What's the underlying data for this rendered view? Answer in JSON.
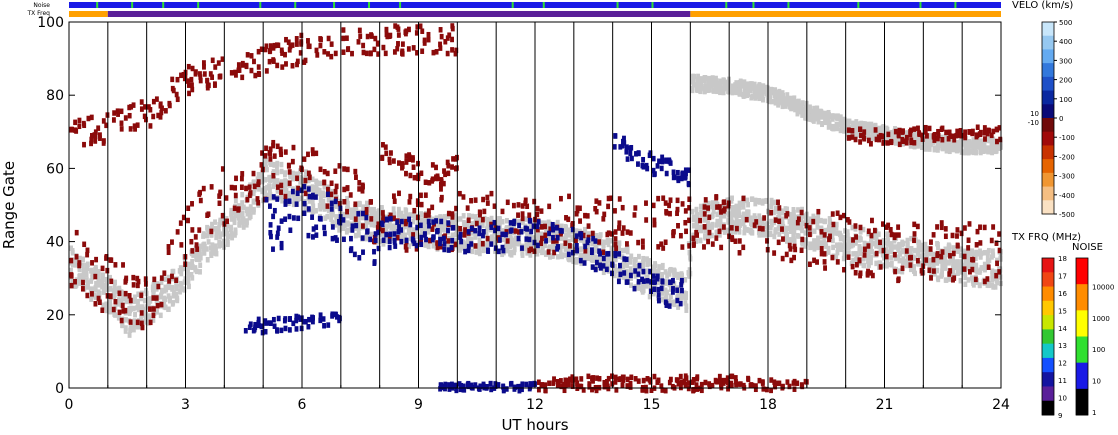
{
  "chart_data": {
    "type": "heatmap",
    "xlabel": "UT hours",
    "ylabel": "Range Gate",
    "xlim": [
      0,
      24
    ],
    "ylim": [
      0,
      100
    ],
    "x_ticks": [
      "0",
      "3",
      "6",
      "9",
      "12",
      "15",
      "18",
      "21",
      "24"
    ],
    "y_ticks": [
      "0",
      "20",
      "40",
      "60",
      "80",
      "100"
    ],
    "noise_label": "Noise",
    "txfreq_label": "TX Freq",
    "txfreq_bar": [
      {
        "start": 0,
        "end": 1,
        "color": "#ffa000"
      },
      {
        "start": 1,
        "end": 16,
        "color": "#5a1f99"
      },
      {
        "start": 16,
        "end": 24,
        "color": "#ffa000"
      }
    ],
    "noise_bar_color": "#1a1ae6",
    "noise_bar_marks": [
      0.7,
      1.6,
      2.4,
      3.3,
      4.9,
      5.8,
      6.8,
      7.7,
      8.5,
      11.4,
      12.2,
      14.1,
      15.0,
      16.9,
      17.6,
      18.5,
      20.3,
      21.9,
      22.8
    ],
    "noise_mark_color": "#30e030",
    "scatter_bands": [
      {
        "kind": "ground",
        "color": "#c8c8c8",
        "points": [
          [
            0,
            34
          ],
          [
            1,
            26
          ],
          [
            1.5,
            20
          ],
          [
            2.5,
            27
          ],
          [
            3.5,
            40
          ],
          [
            4.5,
            50
          ],
          [
            5,
            58
          ],
          [
            6,
            55
          ],
          [
            7,
            48
          ],
          [
            8,
            45
          ],
          [
            9,
            44
          ],
          [
            10,
            43
          ],
          [
            11,
            42
          ],
          [
            12,
            42
          ],
          [
            13,
            40
          ],
          [
            14,
            36
          ],
          [
            15,
            30
          ],
          [
            15.8,
            27
          ],
          [
            16,
            45
          ],
          [
            17,
            48
          ],
          [
            18,
            47
          ],
          [
            19,
            44
          ],
          [
            20,
            40
          ],
          [
            21,
            38
          ],
          [
            22,
            36
          ],
          [
            23,
            34
          ],
          [
            24,
            33
          ]
        ],
        "spread": 5
      },
      {
        "kind": "ground",
        "color": "#c8c8c8",
        "points": [
          [
            16,
            84
          ],
          [
            17,
            83
          ],
          [
            18,
            81
          ],
          [
            19,
            76
          ],
          [
            20,
            72
          ],
          [
            21,
            70
          ],
          [
            22,
            68
          ],
          [
            23,
            67
          ],
          [
            24,
            67
          ]
        ],
        "spread": 2
      },
      {
        "kind": "neg",
        "color": "#8b0a0a",
        "points": [
          [
            0,
            36
          ],
          [
            1,
            28
          ],
          [
            2,
            24
          ],
          [
            3,
            44
          ],
          [
            4,
            54
          ],
          [
            5,
            60
          ],
          [
            6,
            60
          ],
          [
            7,
            56
          ],
          [
            8,
            46
          ],
          [
            9,
            46
          ],
          [
            10,
            46
          ],
          [
            11,
            46
          ],
          [
            12,
            46
          ],
          [
            13,
            45
          ],
          [
            14,
            45
          ],
          [
            17,
            45
          ],
          [
            18,
            44
          ],
          [
            19,
            42
          ],
          [
            20,
            40
          ],
          [
            21,
            38
          ],
          [
            22,
            38
          ],
          [
            23,
            38
          ],
          [
            24,
            37
          ]
        ],
        "spread": 8
      },
      {
        "kind": "neg",
        "color": "#8b0a0a",
        "points": [
          [
            0,
            70
          ],
          [
            1,
            72
          ],
          [
            2,
            76
          ],
          [
            3,
            85
          ],
          [
            5.5,
            92
          ],
          [
            6.5,
            95
          ],
          [
            8,
            96
          ],
          [
            9,
            96
          ],
          [
            10,
            96
          ]
        ],
        "spread": 4
      },
      {
        "kind": "neg",
        "color": "#8b0a0a",
        "points": [
          [
            8,
            65
          ],
          [
            9,
            60
          ],
          [
            9.5,
            58
          ],
          [
            10,
            62
          ]
        ],
        "spread": 3
      },
      {
        "kind": "neg",
        "color": "#8b0a0a",
        "points": [
          [
            20,
            70
          ],
          [
            21,
            69
          ],
          [
            22,
            70
          ],
          [
            23,
            70
          ],
          [
            24,
            70
          ]
        ],
        "spread": 2
      },
      {
        "kind": "neg",
        "color": "#8b0a0a",
        "points": [
          [
            12,
            1
          ],
          [
            13,
            2
          ],
          [
            14,
            2
          ],
          [
            15,
            2
          ],
          [
            16,
            2
          ],
          [
            17,
            2
          ],
          [
            18,
            1
          ],
          [
            19,
            1
          ]
        ],
        "spread": 2
      },
      {
        "kind": "pos",
        "color": "#0a0a8c",
        "points": [
          [
            8,
            43
          ],
          [
            9,
            43
          ],
          [
            10,
            42
          ],
          [
            11,
            42
          ],
          [
            12,
            43
          ],
          [
            13,
            40
          ],
          [
            14,
            34
          ],
          [
            15,
            28
          ],
          [
            15.8,
            26
          ]
        ],
        "spread": 4
      },
      {
        "kind": "pos",
        "color": "#0a0a8c",
        "points": [
          [
            4.5,
            17
          ],
          [
            5,
            18
          ],
          [
            6,
            19
          ],
          [
            7,
            19
          ]
        ],
        "spread": 2
      },
      {
        "kind": "pos",
        "color": "#0a0a8c",
        "points": [
          [
            9.5,
            1
          ],
          [
            10,
            1
          ],
          [
            11,
            1
          ],
          [
            12,
            1
          ]
        ],
        "spread": 1
      },
      {
        "kind": "pos",
        "color": "#0a0a8c",
        "points": [
          [
            14,
            68
          ],
          [
            15,
            62
          ],
          [
            16,
            58
          ]
        ],
        "spread": 3
      },
      {
        "kind": "pos",
        "color": "#0a0a8c",
        "points": [
          [
            5,
            45
          ],
          [
            6,
            50
          ],
          [
            7,
            47
          ],
          [
            8,
            40
          ]
        ],
        "spread": 8
      }
    ],
    "velocity_colorbar": {
      "title": "VELO (km/s)",
      "labels": [
        "500",
        "400",
        "300",
        "200",
        "100",
        "0",
        "-100",
        "-200",
        "-300",
        "-400",
        "-500"
      ],
      "inner_labels": [
        "10",
        "-10"
      ],
      "colors": [
        "#c8e6fa",
        "#96c8f0",
        "#64aaf0",
        "#3278dc",
        "#1e50c8",
        "#0a28a0",
        "#0a0a78",
        "#700a0a",
        "#a00a0a",
        "#c83200",
        "#e66400",
        "#f09632",
        "#f5be82",
        "#fae1c3"
      ]
    },
    "txfreq_colorbar": {
      "title": "TX FRQ (MHz)",
      "labels": [
        "18",
        "17",
        "16",
        "15",
        "14",
        "13",
        "12",
        "11",
        "10",
        "9"
      ],
      "colors": [
        "#e61414",
        "#f04614",
        "#ff8c00",
        "#ffc800",
        "#c8e600",
        "#32c832",
        "#14c8c8",
        "#1450ff",
        "#1414a0",
        "#5a1f99",
        "#000000"
      ]
    },
    "noise_colorbar": {
      "title": "NOISE",
      "labels": [
        "10000",
        "1000",
        "100",
        "10",
        "1"
      ],
      "colors": [
        "#ff0000",
        "#ff8c00",
        "#ffff00",
        "#30e030",
        "#1a1ae6",
        "#000000"
      ]
    }
  }
}
